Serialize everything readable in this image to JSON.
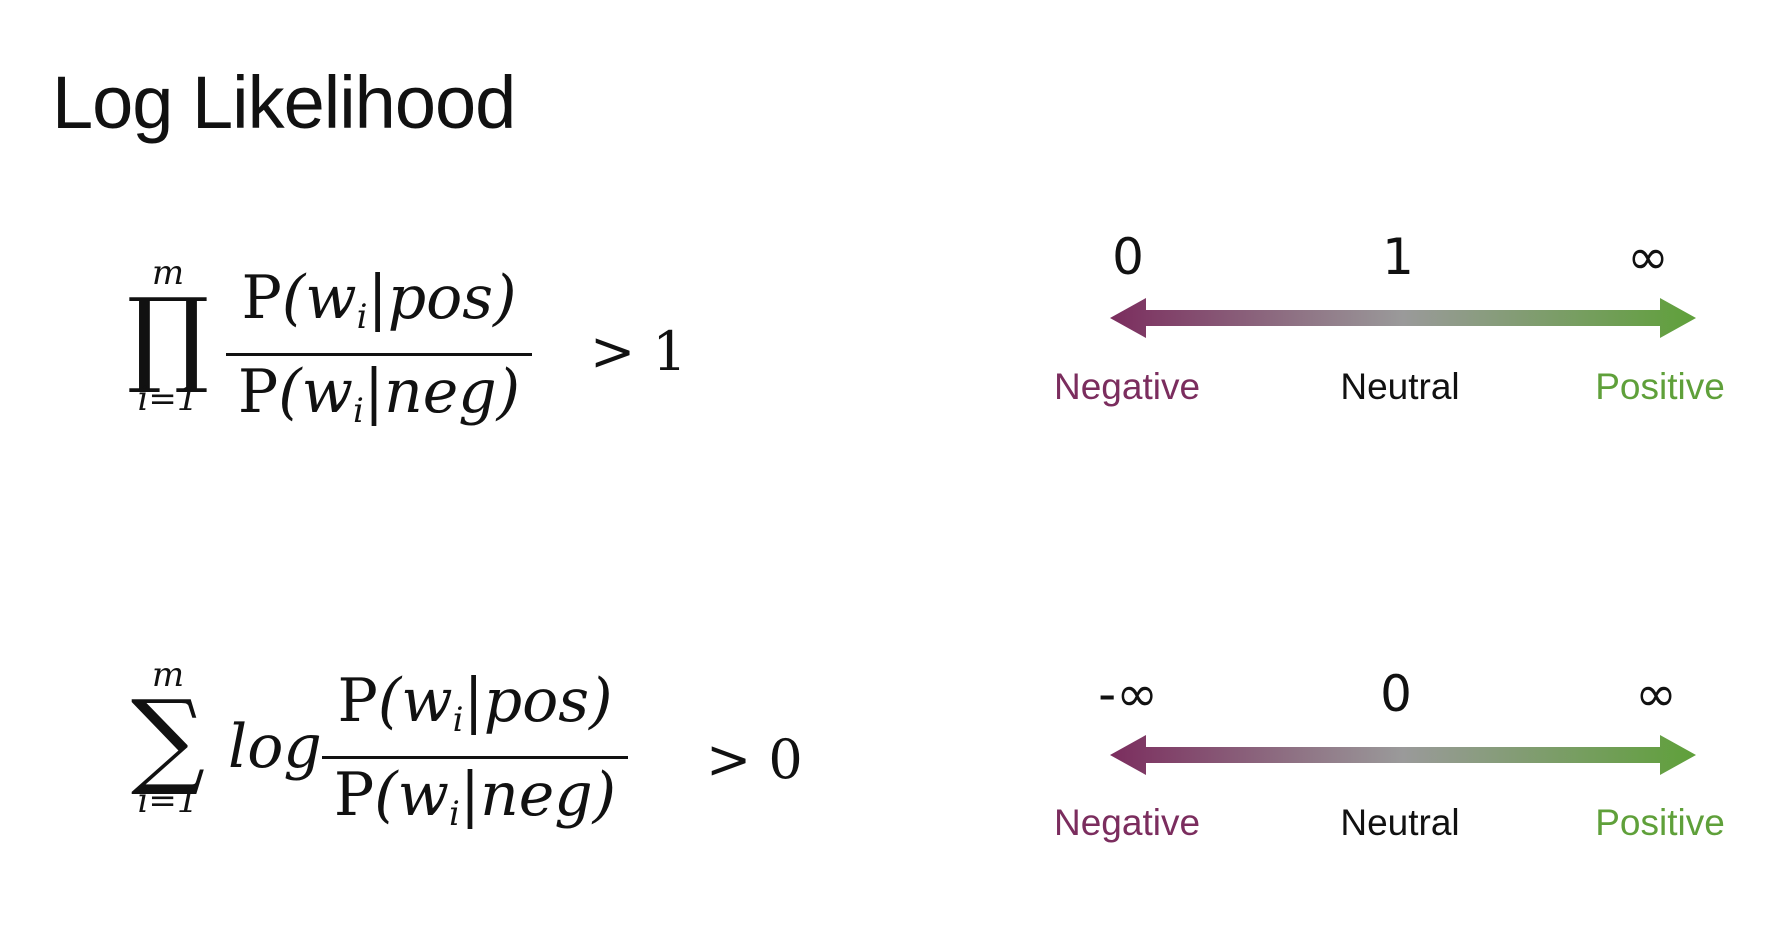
{
  "title": "Log Likelihood",
  "formulas": [
    {
      "operator": "∏",
      "upper_limit": "m",
      "lower_limit": "i=1",
      "prefix": "",
      "numerator": "P(w_i|pos)",
      "denominator": "P(w_i|neg)",
      "comparison": "> 1",
      "compare_sign": ">",
      "compare_value": "1"
    },
    {
      "operator": "∑",
      "upper_limit": "m",
      "lower_limit": "i=1",
      "prefix": "log",
      "numerator": "P(w_i|pos)",
      "denominator": "P(w_i|neg)",
      "comparison": "> 0",
      "compare_sign": ">",
      "compare_value": "0"
    }
  ],
  "scales": [
    {
      "ticks": [
        "0",
        "1",
        "∞"
      ],
      "labels": [
        "Negative",
        "Neutral",
        "Positive"
      ]
    },
    {
      "ticks": [
        "-∞",
        "0",
        "∞"
      ],
      "labels": [
        "Negative",
        "Neutral",
        "Positive"
      ]
    }
  ],
  "colors": {
    "negative": "#7b2d5e",
    "neutral": "#9a9a9a",
    "positive": "#5fa03a",
    "text": "#111111"
  }
}
